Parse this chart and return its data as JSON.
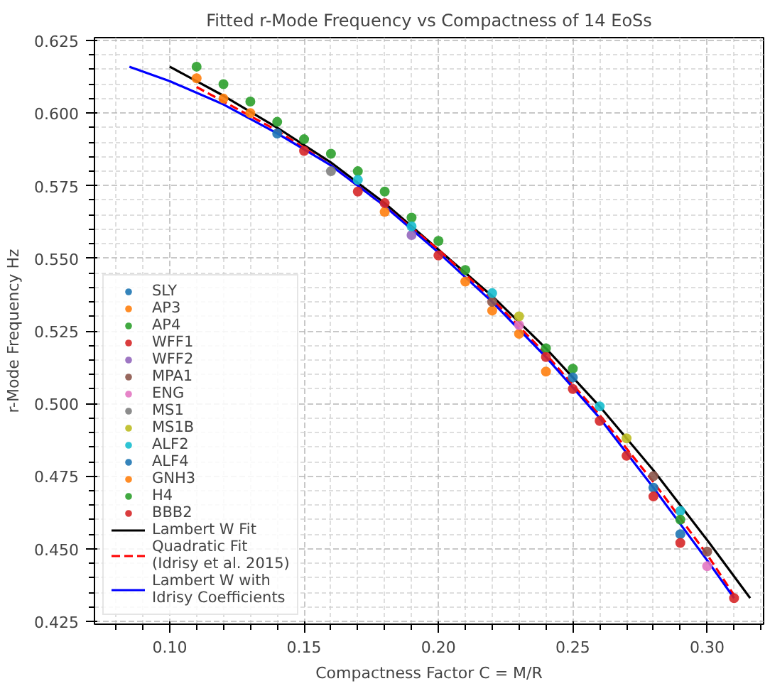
{
  "chart_data": {
    "type": "scatter",
    "title": "Fitted r-Mode Frequency vs Compactness of 14 EoSs",
    "xlabel": "Compactness Factor C = M/R",
    "ylabel": "r-Mode Frequency Hz",
    "xlim": [
      0.072,
      0.321
    ],
    "ylim": [
      0.424,
      0.626
    ],
    "xticks": [
      {
        "value": 0.1,
        "label": "0.10"
      },
      {
        "value": 0.15,
        "label": "0.15"
      },
      {
        "value": 0.2,
        "label": "0.20"
      },
      {
        "value": 0.25,
        "label": "0.25"
      },
      {
        "value": 0.3,
        "label": "0.30"
      }
    ],
    "yticks": [
      0.425,
      {
        "value": 0.45,
        "label": "0.450"
      },
      0.475,
      {
        "value": 0.5,
        "label": "0.500"
      },
      0.525,
      {
        "value": 0.55,
        "label": "0.550"
      },
      0.575,
      {
        "value": 0.6,
        "label": "0.600"
      },
      0.625
    ],
    "grid": true,
    "legend": "bottom left",
    "series": [
      {
        "name": "SLY",
        "color": "#1f77b4",
        "marker": "circle",
        "x": [
          0.14,
          0.28
        ],
        "values": [
          0.593,
          0.471
        ]
      },
      {
        "name": "AP3",
        "color": "#ff7f0e",
        "marker": "circle",
        "x": [
          0.11,
          0.12,
          0.13,
          0.18,
          0.21,
          0.22,
          0.23
        ],
        "values": [
          0.612,
          0.605,
          0.6,
          0.566,
          0.542,
          0.532,
          0.524
        ]
      },
      {
        "name": "AP4",
        "color": "#2ca02c",
        "marker": "circle",
        "x": [
          0.11,
          0.12,
          0.13,
          0.14,
          0.15,
          0.16,
          0.17,
          0.18,
          0.19,
          0.2,
          0.25
        ],
        "values": [
          0.616,
          0.61,
          0.604,
          0.597,
          0.591,
          0.586,
          0.58,
          0.573,
          0.564,
          0.556,
          0.512
        ]
      },
      {
        "name": "WFF1",
        "color": "#d62728",
        "marker": "circle",
        "x": [
          0.17,
          0.25,
          0.27,
          0.31
        ],
        "values": [
          0.573,
          0.505,
          0.482,
          0.433
        ]
      },
      {
        "name": "WFF2",
        "color": "#9467bd",
        "marker": "circle",
        "x": [
          0.19
        ],
        "values": [
          0.558
        ]
      },
      {
        "name": "MPA1",
        "color": "#8c564b",
        "marker": "circle",
        "x": [
          0.22,
          0.28,
          0.3
        ],
        "values": [
          0.535,
          0.475,
          0.449
        ]
      },
      {
        "name": "ENG",
        "color": "#e377c2",
        "marker": "circle",
        "x": [
          0.23,
          0.3
        ],
        "values": [
          0.527,
          0.444
        ]
      },
      {
        "name": "MS1",
        "color": "#7f7f7f",
        "marker": "circle",
        "x": [
          0.16
        ],
        "values": [
          0.58
        ]
      },
      {
        "name": "MS1B",
        "color": "#bcbd22",
        "marker": "circle",
        "x": [
          0.23,
          0.27
        ],
        "values": [
          0.53,
          0.488
        ]
      },
      {
        "name": "ALF2",
        "color": "#17becf",
        "marker": "circle",
        "x": [
          0.17,
          0.19,
          0.22,
          0.26,
          0.29
        ],
        "values": [
          0.577,
          0.561,
          0.538,
          0.499,
          0.463
        ]
      },
      {
        "name": "ALF4",
        "color": "#1f77b4",
        "marker": "circle",
        "x": [
          0.25,
          0.29
        ],
        "values": [
          0.509,
          0.455
        ]
      },
      {
        "name": "GNH3",
        "color": "#ff7f0e",
        "marker": "circle",
        "x": [
          0.24
        ],
        "values": [
          0.511
        ]
      },
      {
        "name": "H4",
        "color": "#2ca02c",
        "marker": "circle",
        "x": [
          0.21,
          0.24,
          0.29
        ],
        "values": [
          0.546,
          0.519,
          0.46
        ]
      },
      {
        "name": "BBB2",
        "color": "#d62728",
        "marker": "circle",
        "x": [
          0.15,
          0.18,
          0.2,
          0.24,
          0.26,
          0.28,
          0.29
        ],
        "values": [
          0.587,
          0.569,
          0.551,
          0.516,
          0.494,
          0.468,
          0.452
        ]
      },
      {
        "name": "Lambert W Fit",
        "type": "line",
        "color": "#000000",
        "line_style": "solid",
        "x": [
          0.1,
          0.12,
          0.14,
          0.16,
          0.18,
          0.2,
          0.22,
          0.24,
          0.26,
          0.28,
          0.3,
          0.316
        ],
        "values": [
          0.616,
          0.606,
          0.595,
          0.583,
          0.569,
          0.553,
          0.537,
          0.519,
          0.499,
          0.477,
          0.453,
          0.433
        ]
      },
      {
        "name": "Quadratic Fit\n(Idrisy et al. 2015)",
        "type": "line",
        "color": "#ff0000",
        "line_style": "dashed",
        "x": [
          0.11,
          0.12,
          0.14,
          0.16,
          0.18,
          0.2,
          0.22,
          0.24,
          0.26,
          0.28,
          0.3,
          0.31
        ],
        "values": [
          0.609,
          0.604,
          0.594,
          0.582,
          0.568,
          0.553,
          0.536,
          0.517,
          0.496,
          0.473,
          0.448,
          0.434
        ]
      },
      {
        "name": "Lambert W with\nIdrisy Coefficients",
        "type": "line",
        "color": "#0000ff",
        "line_style": "solid",
        "x": [
          0.085,
          0.1,
          0.12,
          0.14,
          0.16,
          0.18,
          0.2,
          0.22,
          0.24,
          0.26,
          0.28,
          0.3,
          0.31
        ],
        "values": [
          0.616,
          0.611,
          0.603,
          0.593,
          0.582,
          0.568,
          0.552,
          0.535,
          0.516,
          0.495,
          0.471,
          0.446,
          0.433
        ]
      }
    ]
  }
}
